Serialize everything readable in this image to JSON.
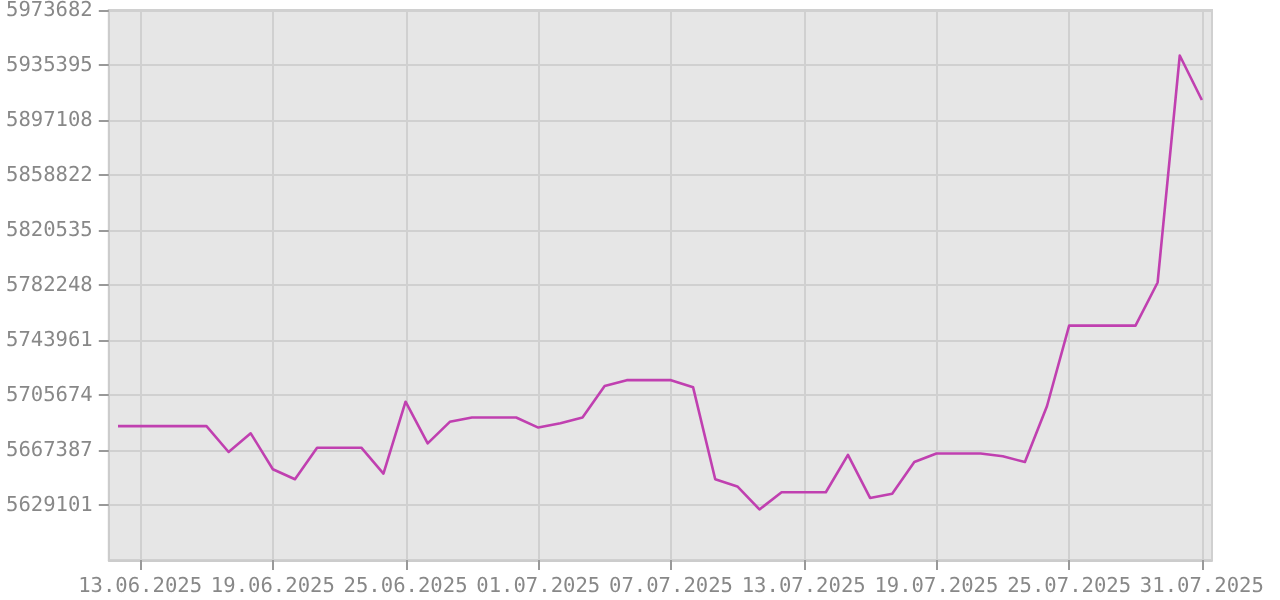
{
  "chart_data": {
    "type": "line",
    "x": [
      "2025-06-12",
      "2025-06-13",
      "2025-06-14",
      "2025-06-15",
      "2025-06-16",
      "2025-06-17",
      "2025-06-18",
      "2025-06-19",
      "2025-06-20",
      "2025-06-21",
      "2025-06-22",
      "2025-06-23",
      "2025-06-24",
      "2025-06-25",
      "2025-06-26",
      "2025-06-27",
      "2025-06-28",
      "2025-06-29",
      "2025-06-30",
      "2025-07-01",
      "2025-07-02",
      "2025-07-03",
      "2025-07-04",
      "2025-07-05",
      "2025-07-06",
      "2025-07-07",
      "2025-07-08",
      "2025-07-09",
      "2025-07-10",
      "2025-07-11",
      "2025-07-12",
      "2025-07-13",
      "2025-07-14",
      "2025-07-15",
      "2025-07-16",
      "2025-07-17",
      "2025-07-18",
      "2025-07-19",
      "2025-07-20",
      "2025-07-21",
      "2025-07-22",
      "2025-07-23",
      "2025-07-24",
      "2025-07-25",
      "2025-07-26",
      "2025-07-27",
      "2025-07-28",
      "2025-07-29",
      "2025-07-30",
      "2025-07-31"
    ],
    "series": [
      {
        "color": "#c040b0",
        "values": [
          5684000,
          5684000,
          5684000,
          5684000,
          5684000,
          5666000,
          5679000,
          5654000,
          5647000,
          5669000,
          5669000,
          5669000,
          5651000,
          5701000,
          5672000,
          5687000,
          5690000,
          5690000,
          5690000,
          5683000,
          5686000,
          5690000,
          5712000,
          5716000,
          5716000,
          5716000,
          5711000,
          5647000,
          5642000,
          5626000,
          5638000,
          5638000,
          5638000,
          5664000,
          5634000,
          5637000,
          5659000,
          5665000,
          5665000,
          5665000,
          5663000,
          5659000,
          5698000,
          5754000,
          5754000,
          5754000,
          5754000,
          5784000,
          5942000,
          5911000
        ]
      }
    ],
    "xlim": [
      "2025-06-11T14:00",
      "2025-07-31T11:00"
    ],
    "xticks": [
      {
        "value": "2025-06-13",
        "label": "13.06.2025"
      },
      {
        "value": "2025-06-19",
        "label": "19.06.2025"
      },
      {
        "value": "2025-06-25",
        "label": "25.06.2025"
      },
      {
        "value": "2025-07-01",
        "label": "01.07.2025"
      },
      {
        "value": "2025-07-07",
        "label": "07.07.2025"
      },
      {
        "value": "2025-07-13",
        "label": "13.07.2025"
      },
      {
        "value": "2025-07-19",
        "label": "19.07.2025"
      },
      {
        "value": "2025-07-25",
        "label": "25.07.2025"
      },
      {
        "value": "2025-07-31",
        "label": "31.07.2025"
      }
    ],
    "ylim": [
      5590814,
      5973682
    ],
    "yticks": [
      5629101,
      5667387,
      5705674,
      5743961,
      5782248,
      5820535,
      5858822,
      5897108,
      5935395,
      5973682
    ],
    "grid": true,
    "marker": "none",
    "line_style": "solid"
  }
}
